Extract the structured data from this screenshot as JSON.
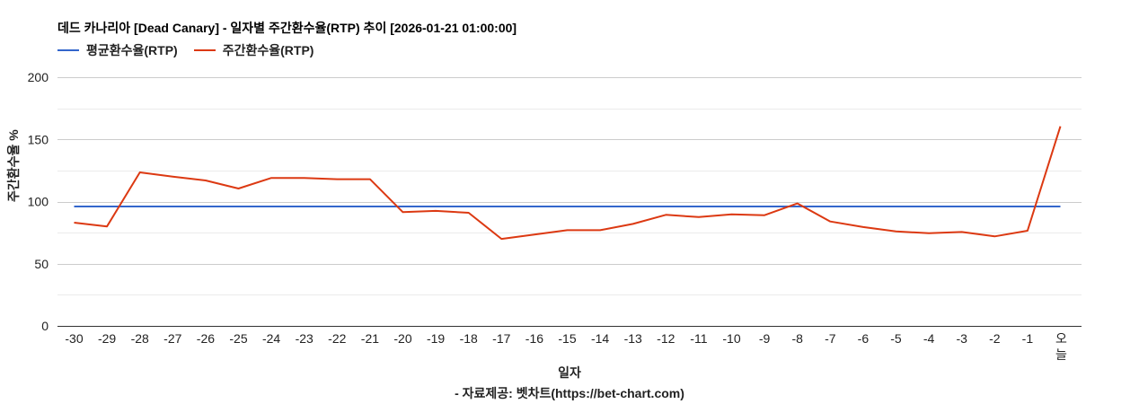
{
  "title": "데드 카나리아 [Dead Canary] - 일자별 주간환수율(RTP) 추이 [2026-01-21 01:00:00]",
  "legend": [
    {
      "label": "평균환수율(RTP)",
      "color": "#3366cc"
    },
    {
      "label": "주간환수율(RTP)",
      "color": "#dc3912"
    }
  ],
  "xlabel": "일자",
  "ylabel": "주간환수율 %",
  "source": "- 자료제공: 벳차트(https://bet-chart.com)",
  "chart_data": {
    "type": "line",
    "title": "데드 카나리아 [Dead Canary] - 일자별 주간환수율(RTP) 추이 [2026-01-21 01:00:00]",
    "xlabel": "일자",
    "ylabel": "주간환수율 %",
    "ylim": [
      0,
      200
    ],
    "yticks": [
      0,
      50,
      100,
      150,
      200
    ],
    "grid": true,
    "legend_position": "top",
    "categories": [
      "-30",
      "-29",
      "-28",
      "-27",
      "-26",
      "-25",
      "-24",
      "-23",
      "-22",
      "-21",
      "-20",
      "-19",
      "-18",
      "-17",
      "-16",
      "-15",
      "-14",
      "-13",
      "-12",
      "-11",
      "-10",
      "-9",
      "-8",
      "-7",
      "-6",
      "-5",
      "-4",
      "-3",
      "-2",
      "-1",
      "오늘"
    ],
    "series": [
      {
        "name": "평균환수율(RTP)",
        "color": "#3366cc",
        "values": [
          96,
          96,
          96,
          96,
          96,
          96,
          96,
          96,
          96,
          96,
          96,
          96,
          96,
          96,
          96,
          96,
          96,
          96,
          96,
          96,
          96,
          96,
          96,
          96,
          96,
          96,
          96,
          96,
          96,
          96,
          96
        ]
      },
      {
        "name": "주간환수율(RTP)",
        "color": "#dc3912",
        "values": [
          83,
          80,
          123.5,
          120,
          117,
          110.5,
          119,
          119,
          118,
          118,
          91.5,
          92.5,
          91,
          70,
          73.5,
          77,
          77,
          82,
          89.3,
          87.5,
          89.7,
          89,
          98.5,
          84,
          79.5,
          76,
          74.5,
          75.5,
          72,
          76.5,
          160.5
        ]
      }
    ]
  }
}
